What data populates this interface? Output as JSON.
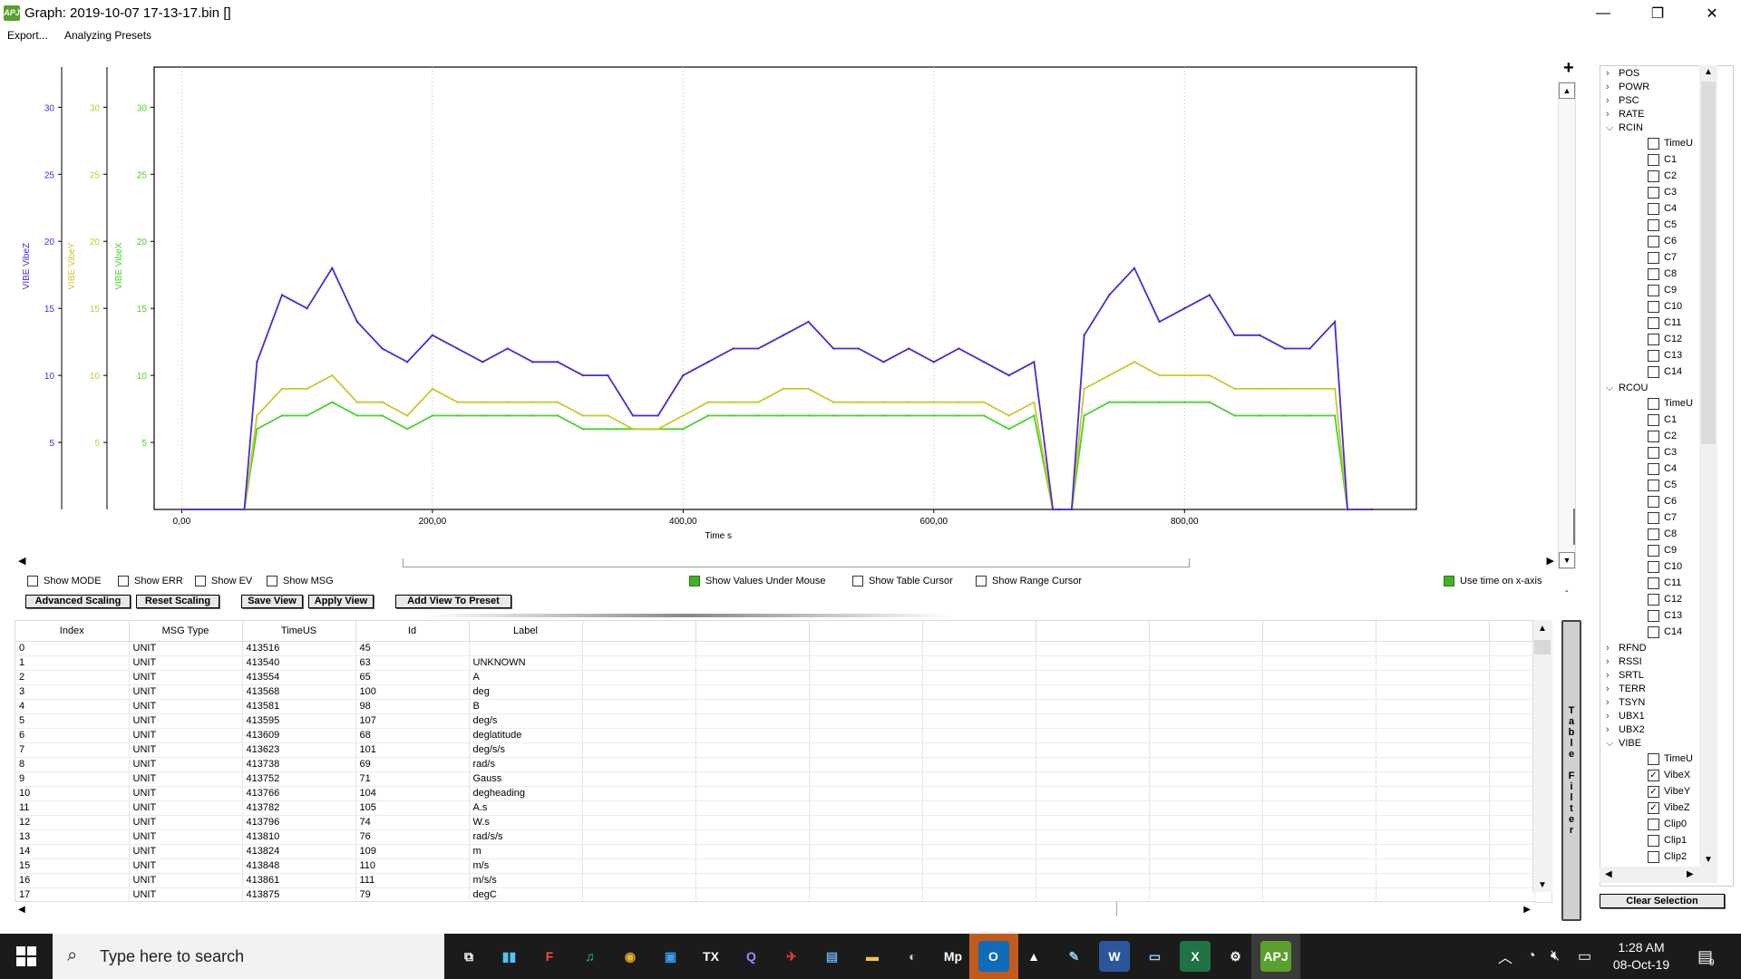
{
  "window": {
    "title": "Graph: 2019-10-07 17-13-17.bin []",
    "app_icon_text": "APJ",
    "minimize": "—",
    "maximize": "❐",
    "close": "✕"
  },
  "menu": [
    "Export...",
    "Analyzing Presets"
  ],
  "graph": {
    "zoom_plus": "+",
    "colors": {
      "vibex": "#49d22b",
      "vibey": "#c9c92e",
      "vibez": "#4a2bd0"
    },
    "axes_labels": {
      "z": "VIBE VibeZ",
      "y": "VIBE VibeY",
      "x": "VIBE VibeX"
    },
    "y_ticks": [
      "5",
      "10",
      "15",
      "20",
      "25",
      "30"
    ],
    "x_ticks": [
      "0,00",
      "200,00",
      "400,00",
      "600,00",
      "800,00"
    ],
    "x_label": "Time s"
  },
  "chart_data": {
    "type": "line",
    "xlabel": "Time s",
    "ylabel": "",
    "xlim": [
      -22,
      985
    ],
    "ylim": [
      0,
      33
    ],
    "grid": true,
    "series": [
      {
        "name": "VIBE VibeZ",
        "color": "#4a2bd0",
        "x": [
          0,
          50,
          60,
          80,
          100,
          120,
          140,
          160,
          180,
          200,
          220,
          240,
          260,
          280,
          300,
          320,
          340,
          360,
          380,
          400,
          420,
          440,
          460,
          480,
          500,
          520,
          540,
          560,
          580,
          600,
          620,
          640,
          660,
          680,
          695,
          700,
          710,
          720,
          740,
          760,
          780,
          800,
          820,
          840,
          860,
          880,
          900,
          920,
          930,
          950
        ],
        "y": [
          0,
          0,
          11,
          16,
          15,
          18,
          14,
          12,
          11,
          13,
          12,
          11,
          12,
          11,
          11,
          10,
          10,
          7,
          7,
          10,
          11,
          12,
          12,
          13,
          14,
          12,
          12,
          11,
          12,
          11,
          12,
          11,
          10,
          11,
          0,
          0,
          0,
          13,
          16,
          18,
          14,
          15,
          16,
          13,
          13,
          12,
          12,
          14,
          0,
          0
        ]
      },
      {
        "name": "VIBE VibeY",
        "color": "#c9c92e",
        "x": [
          0,
          50,
          60,
          80,
          100,
          120,
          140,
          160,
          180,
          200,
          220,
          240,
          260,
          280,
          300,
          320,
          340,
          360,
          380,
          400,
          420,
          440,
          460,
          480,
          500,
          520,
          540,
          560,
          580,
          600,
          620,
          640,
          660,
          680,
          695,
          700,
          710,
          720,
          740,
          760,
          780,
          800,
          820,
          840,
          860,
          880,
          900,
          920,
          930,
          950
        ],
        "y": [
          0,
          0,
          7,
          9,
          9,
          10,
          8,
          8,
          7,
          9,
          8,
          8,
          8,
          8,
          8,
          7,
          7,
          6,
          6,
          7,
          8,
          8,
          8,
          9,
          9,
          8,
          8,
          8,
          8,
          8,
          8,
          8,
          7,
          8,
          0,
          0,
          0,
          9,
          10,
          11,
          10,
          10,
          10,
          9,
          9,
          9,
          9,
          9,
          0,
          0
        ]
      },
      {
        "name": "VIBE VibeX",
        "color": "#49d22b",
        "x": [
          0,
          50,
          60,
          80,
          100,
          120,
          140,
          160,
          180,
          200,
          220,
          240,
          260,
          280,
          300,
          320,
          340,
          360,
          380,
          400,
          420,
          440,
          460,
          480,
          500,
          520,
          540,
          560,
          580,
          600,
          620,
          640,
          660,
          680,
          695,
          700,
          710,
          720,
          740,
          760,
          780,
          800,
          820,
          840,
          860,
          880,
          900,
          920,
          930,
          950
        ],
        "y": [
          0,
          0,
          6,
          7,
          7,
          8,
          7,
          7,
          6,
          7,
          7,
          7,
          7,
          7,
          7,
          6,
          6,
          6,
          6,
          6,
          7,
          7,
          7,
          7,
          7,
          7,
          7,
          7,
          7,
          7,
          7,
          7,
          6,
          7,
          0,
          0,
          0,
          7,
          8,
          8,
          8,
          8,
          8,
          7,
          7,
          7,
          7,
          7,
          0,
          0
        ]
      }
    ]
  },
  "options": {
    "show_mode": "Show MODE",
    "show_err": "Show ERR",
    "show_ev": "Show EV",
    "show_msg": "Show MSG",
    "show_values": "Show Values Under Mouse",
    "show_table_cursor": "Show Table Cursor",
    "show_range_cursor": "Show Range Cursor",
    "use_time": "Use time on x-axis"
  },
  "buttons": {
    "advanced_scaling": "Advanced Scaling",
    "reset_scaling": "Reset Scaling",
    "save_view": "Save View",
    "apply_view": "Apply View",
    "add_view": "Add View To Preset",
    "clear_selection": "Clear Selection",
    "table_filter": "Table Filter"
  },
  "table": {
    "headers": [
      "Index",
      "MSG Type",
      "TimeUS",
      "Id",
      "Label"
    ],
    "rows": [
      [
        "0",
        "UNIT",
        "413516",
        "45",
        ""
      ],
      [
        "1",
        "UNIT",
        "413540",
        "63",
        "UNKNOWN"
      ],
      [
        "2",
        "UNIT",
        "413554",
        "65",
        "A"
      ],
      [
        "3",
        "UNIT",
        "413568",
        "100",
        "deg"
      ],
      [
        "4",
        "UNIT",
        "413581",
        "98",
        "B"
      ],
      [
        "5",
        "UNIT",
        "413595",
        "107",
        "deg/s"
      ],
      [
        "6",
        "UNIT",
        "413609",
        "68",
        "deglatitude"
      ],
      [
        "7",
        "UNIT",
        "413623",
        "101",
        "deg/s/s"
      ],
      [
        "8",
        "UNIT",
        "413738",
        "69",
        "rad/s"
      ],
      [
        "9",
        "UNIT",
        "413752",
        "71",
        "Gauss"
      ],
      [
        "10",
        "UNIT",
        "413766",
        "104",
        "degheading"
      ],
      [
        "11",
        "UNIT",
        "413782",
        "105",
        "A.s"
      ],
      [
        "12",
        "UNIT",
        "413796",
        "74",
        "W.s"
      ],
      [
        "13",
        "UNIT",
        "413810",
        "76",
        "rad/s/s"
      ],
      [
        "14",
        "UNIT",
        "413824",
        "109",
        "m"
      ],
      [
        "15",
        "UNIT",
        "413848",
        "110",
        "m/s"
      ],
      [
        "16",
        "UNIT",
        "413861",
        "111",
        "m/s/s"
      ],
      [
        "17",
        "UNIT",
        "413875",
        "79",
        "degC"
      ]
    ]
  },
  "tree": {
    "collapsed_top": [
      "POS",
      "POWR",
      "PSC",
      "RATE"
    ],
    "rcin": {
      "label": "RCIN",
      "children": [
        "TimeU",
        "C1",
        "C2",
        "C3",
        "C4",
        "C5",
        "C6",
        "C7",
        "C8",
        "C9",
        "C10",
        "C11",
        "C12",
        "C13",
        "C14"
      ]
    },
    "rcou": {
      "label": "RCOU",
      "children": [
        "TimeU",
        "C1",
        "C2",
        "C3",
        "C4",
        "C5",
        "C6",
        "C7",
        "C8",
        "C9",
        "C10",
        "C11",
        "C12",
        "C13",
        "C14"
      ]
    },
    "collapsed_mid": [
      "RFND",
      "RSSI",
      "SRTL",
      "TERR",
      "TSYN",
      "UBX1",
      "UBX2"
    ],
    "vibe": {
      "label": "VIBE",
      "children": [
        {
          "label": "TimeU",
          "checked": false
        },
        {
          "label": "VibeX",
          "checked": true
        },
        {
          "label": "VibeY",
          "checked": true
        },
        {
          "label": "VibeZ",
          "checked": true
        },
        {
          "label": "Clip0",
          "checked": false
        },
        {
          "label": "Clip1",
          "checked": false
        },
        {
          "label": "Clip2",
          "checked": false
        }
      ]
    }
  },
  "taskbar": {
    "search_placeholder": "Type here to search",
    "time": "1:28 AM",
    "date": "08-Oct-19",
    "notification_count": "9",
    "apps": [
      {
        "name": "task-view",
        "glyph": "⧉",
        "color": "#ffffff",
        "bg": "transparent"
      },
      {
        "name": "app-colorful",
        "glyph": "▮▮",
        "color": "#4fc3f7",
        "bg": "transparent"
      },
      {
        "name": "foxit",
        "glyph": "F",
        "color": "#ff4a2a",
        "bg": "transparent"
      },
      {
        "name": "spotify",
        "glyph": "♫",
        "color": "#1ed760",
        "bg": "transparent"
      },
      {
        "name": "chrome",
        "glyph": "◉",
        "color": "#e9b130",
        "bg": "transparent"
      },
      {
        "name": "window-app",
        "glyph": "▣",
        "color": "#3aa0ff",
        "bg": "transparent"
      },
      {
        "name": "opentx",
        "glyph": "TX",
        "color": "#ffffff",
        "bg": "transparent"
      },
      {
        "name": "qgc",
        "glyph": "Q",
        "color": "#b080ff",
        "bg": "transparent"
      },
      {
        "name": "red-app",
        "glyph": "✈",
        "color": "#e53935",
        "bg": "transparent"
      },
      {
        "name": "film-app",
        "glyph": "▤",
        "color": "#6fa8dc",
        "bg": "transparent"
      },
      {
        "name": "file-explorer",
        "glyph": "▬",
        "color": "#f3c540",
        "bg": "transparent"
      },
      {
        "name": "globe-app",
        "glyph": "◐",
        "color": "#cccccc",
        "bg": "transparent"
      },
      {
        "name": "mission-planner",
        "glyph": "Mp",
        "color": "#ffffff",
        "bg": "transparent"
      },
      {
        "name": "outlook",
        "glyph": "O",
        "color": "#ffffff",
        "bg": "#0f6cbd"
      },
      {
        "name": "photos",
        "glyph": "▲",
        "color": "#ffffff",
        "bg": "transparent"
      },
      {
        "name": "paint",
        "glyph": "✎",
        "color": "#8ecae6",
        "bg": "transparent"
      },
      {
        "name": "word",
        "glyph": "W",
        "color": "#ffffff",
        "bg": "#2b579a"
      },
      {
        "name": "remote-desktop",
        "glyph": "▭",
        "color": "#9fd3ff",
        "bg": "transparent"
      },
      {
        "name": "excel",
        "glyph": "X",
        "color": "#ffffff",
        "bg": "#217346"
      },
      {
        "name": "settings",
        "glyph": "⚙",
        "color": "#ffffff",
        "bg": "transparent"
      },
      {
        "name": "apm-planner",
        "glyph": "APJ",
        "color": "#ffffff",
        "bg": "#5aa02c"
      }
    ]
  }
}
